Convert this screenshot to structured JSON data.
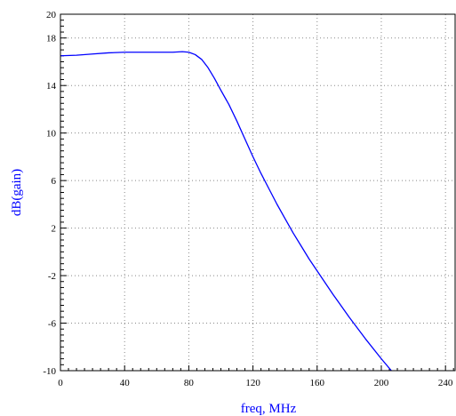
{
  "chart_data": {
    "type": "line",
    "title": "",
    "xlabel": "freq, MHz",
    "ylabel": "dB(gain)",
    "xlim": [
      0,
      246
    ],
    "ylim": [
      -10,
      20
    ],
    "x_ticks": [
      0,
      40,
      80,
      120,
      160,
      200,
      240
    ],
    "y_ticks": [
      -10,
      -6,
      -2,
      2,
      6,
      10,
      14,
      18,
      20
    ],
    "grid": true,
    "series": [
      {
        "color": "#0000ff",
        "x": [
          0,
          10,
          20,
          30,
          40,
          50,
          60,
          70,
          76,
          80,
          84,
          88,
          92,
          96,
          100,
          105,
          110,
          115,
          120,
          125,
          130,
          135,
          140,
          145,
          150,
          155,
          160,
          170,
          180,
          190,
          200,
          210,
          216
        ],
        "y": [
          16.5,
          16.55,
          16.65,
          16.75,
          16.8,
          16.8,
          16.8,
          16.8,
          16.85,
          16.8,
          16.6,
          16.2,
          15.5,
          14.6,
          13.6,
          12.4,
          11.0,
          9.5,
          8.0,
          6.6,
          5.3,
          4.0,
          2.8,
          1.6,
          0.5,
          -0.6,
          -1.6,
          -3.6,
          -5.5,
          -7.3,
          -9.0,
          -10.6,
          -11.5
        ]
      }
    ]
  },
  "colors": {
    "series": "#0000ff",
    "axis_title": "#0000ff",
    "axis": "#000000",
    "grid": "#888888"
  }
}
